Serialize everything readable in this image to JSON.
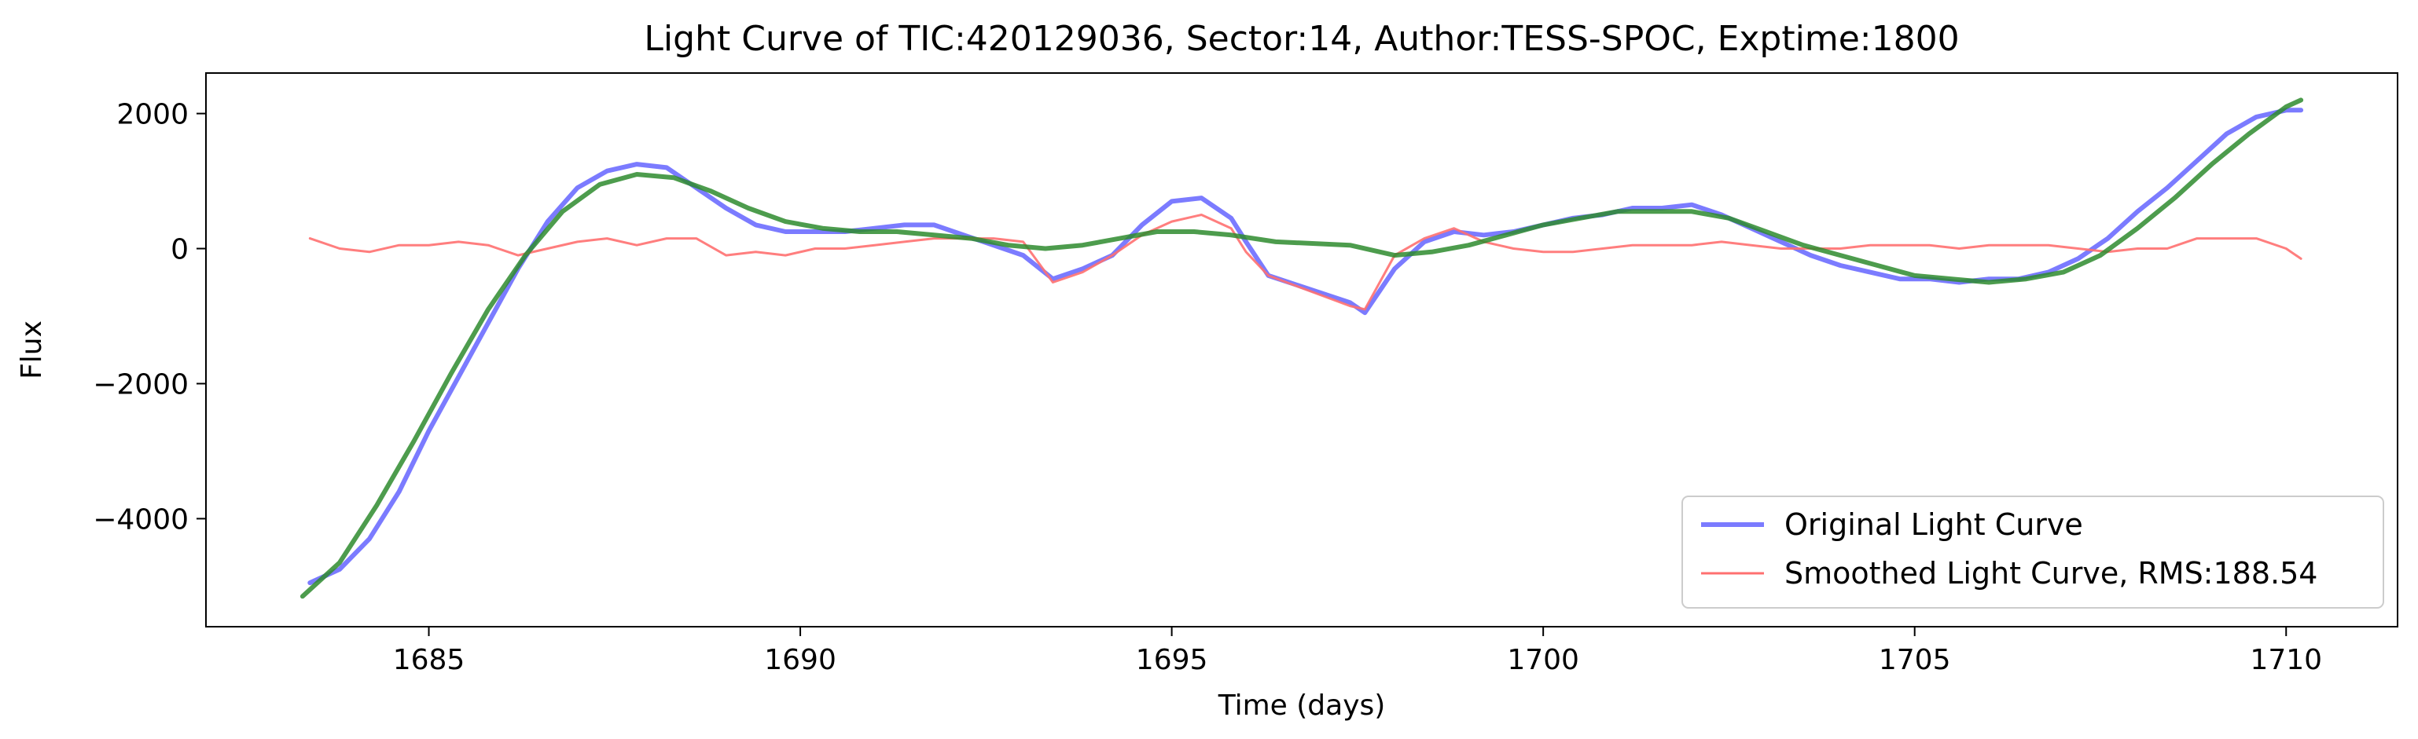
{
  "chart_data": {
    "type": "line",
    "title": "Light Curve of TIC:420129036, Sector:14, Author:TESS-SPOC, Exptime:1800",
    "xlabel": "Time (days)",
    "ylabel": "Flux",
    "xlim": [
      1682,
      1711.5
    ],
    "ylim": [
      -5600,
      2600
    ],
    "xticks": [
      1685,
      1690,
      1695,
      1700,
      1705,
      1710
    ],
    "xtick_labels": [
      "1685",
      "1690",
      "1695",
      "1700",
      "1705",
      "1710"
    ],
    "yticks": [
      2000,
      0,
      -2000,
      -4000
    ],
    "ytick_labels": [
      "2000",
      "0",
      "−2000",
      "−4000"
    ],
    "grid": false,
    "legend_position": "lower-right",
    "series": [
      {
        "name": "Original Light Curve",
        "color": "#7b7bff",
        "x": [
          1683.4,
          1683.8,
          1684.2,
          1684.6,
          1685.0,
          1685.4,
          1685.8,
          1686.2,
          1686.6,
          1687.0,
          1687.4,
          1687.8,
          1688.2,
          1688.6,
          1689.0,
          1689.4,
          1689.8,
          1690.2,
          1690.6,
          1691.0,
          1691.4,
          1691.8,
          1692.2,
          1692.6,
          1693.0,
          1693.4,
          1693.8,
          1694.2,
          1694.6,
          1695.0,
          1695.4,
          1695.8,
          1696.0,
          1696.3,
          1697.4,
          1697.6,
          1698.0,
          1698.4,
          1698.8,
          1699.2,
          1699.6,
          1700.0,
          1700.4,
          1700.8,
          1701.2,
          1701.6,
          1702.0,
          1702.4,
          1702.8,
          1703.2,
          1703.6,
          1704.0,
          1704.4,
          1704.8,
          1705.2,
          1705.6,
          1706.0,
          1706.4,
          1706.8,
          1707.2,
          1707.6,
          1708.0,
          1708.4,
          1708.8,
          1709.2,
          1709.6,
          1710.0,
          1710.2
        ],
        "values": [
          -4950,
          -4750,
          -4300,
          -3600,
          -2700,
          -1900,
          -1100,
          -300,
          400,
          900,
          1150,
          1250,
          1200,
          900,
          600,
          350,
          250,
          250,
          250,
          300,
          350,
          350,
          200,
          50,
          -100,
          -450,
          -300,
          -100,
          350,
          700,
          750,
          450,
          100,
          -400,
          -800,
          -950,
          -300,
          100,
          250,
          200,
          250,
          350,
          450,
          500,
          600,
          600,
          650,
          500,
          300,
          100,
          -100,
          -250,
          -350,
          -450,
          -450,
          -500,
          -450,
          -450,
          -350,
          -150,
          150,
          550,
          900,
          1300,
          1700,
          1950,
          2050,
          2050
        ]
      },
      {
        "name": "Smoothed Light Curve, RMS:188.54",
        "color": "#ff7070",
        "x": [
          1683.4,
          1683.8,
          1684.2,
          1684.6,
          1685.0,
          1685.4,
          1685.8,
          1686.2,
          1686.6,
          1687.0,
          1687.4,
          1687.8,
          1688.2,
          1688.6,
          1689.0,
          1689.4,
          1689.8,
          1690.2,
          1690.6,
          1691.0,
          1691.4,
          1691.8,
          1692.2,
          1692.6,
          1693.0,
          1693.4,
          1693.8,
          1694.2,
          1694.6,
          1695.0,
          1695.4,
          1695.8,
          1696.0,
          1696.3,
          1697.4,
          1697.6,
          1698.0,
          1698.4,
          1698.8,
          1699.2,
          1699.6,
          1700.0,
          1700.4,
          1700.8,
          1701.2,
          1701.6,
          1702.0,
          1702.4,
          1702.8,
          1703.2,
          1703.6,
          1704.0,
          1704.4,
          1704.8,
          1705.2,
          1705.6,
          1706.0,
          1706.4,
          1706.8,
          1707.2,
          1707.6,
          1708.0,
          1708.4,
          1708.8,
          1709.2,
          1709.6,
          1710.0,
          1710.2
        ],
        "values": [
          150,
          0,
          -50,
          50,
          50,
          100,
          50,
          -100,
          0,
          100,
          150,
          50,
          150,
          150,
          -100,
          -50,
          -100,
          0,
          0,
          50,
          100,
          150,
          150,
          150,
          100,
          -500,
          -350,
          -100,
          200,
          400,
          500,
          300,
          -50,
          -400,
          -850,
          -900,
          -100,
          150,
          300,
          100,
          0,
          -50,
          -50,
          0,
          50,
          50,
          50,
          100,
          50,
          0,
          0,
          0,
          50,
          50,
          50,
          0,
          50,
          50,
          50,
          0,
          -50,
          0,
          0,
          150,
          150,
          150,
          0,
          -150
        ]
      },
      {
        "name": "",
        "color": "#2e8b2e",
        "x": [
          1683.3,
          1683.8,
          1684.3,
          1684.8,
          1685.3,
          1685.8,
          1686.3,
          1686.8,
          1687.3,
          1687.8,
          1688.3,
          1688.8,
          1689.3,
          1689.8,
          1690.3,
          1690.8,
          1691.3,
          1691.8,
          1692.3,
          1692.8,
          1693.3,
          1693.8,
          1694.3,
          1694.8,
          1695.3,
          1695.8,
          1696.4,
          1697.4,
          1698.0,
          1698.5,
          1699.0,
          1699.5,
          1700.0,
          1700.5,
          1701.0,
          1701.5,
          1702.0,
          1702.5,
          1703.0,
          1703.5,
          1704.0,
          1704.5,
          1705.0,
          1705.5,
          1706.0,
          1706.5,
          1707.0,
          1707.5,
          1708.0,
          1708.5,
          1709.0,
          1709.5,
          1710.0,
          1710.2
        ],
        "values": [
          -5150,
          -4650,
          -3800,
          -2850,
          -1850,
          -900,
          -100,
          550,
          950,
          1100,
          1050,
          850,
          600,
          400,
          300,
          250,
          250,
          200,
          150,
          50,
          0,
          50,
          150,
          250,
          250,
          200,
          100,
          50,
          -100,
          -50,
          50,
          200,
          350,
          450,
          550,
          550,
          550,
          450,
          250,
          50,
          -100,
          -250,
          -400,
          -450,
          -500,
          -450,
          -350,
          -100,
          300,
          750,
          1250,
          1700,
          2100,
          2200
        ]
      }
    ]
  }
}
